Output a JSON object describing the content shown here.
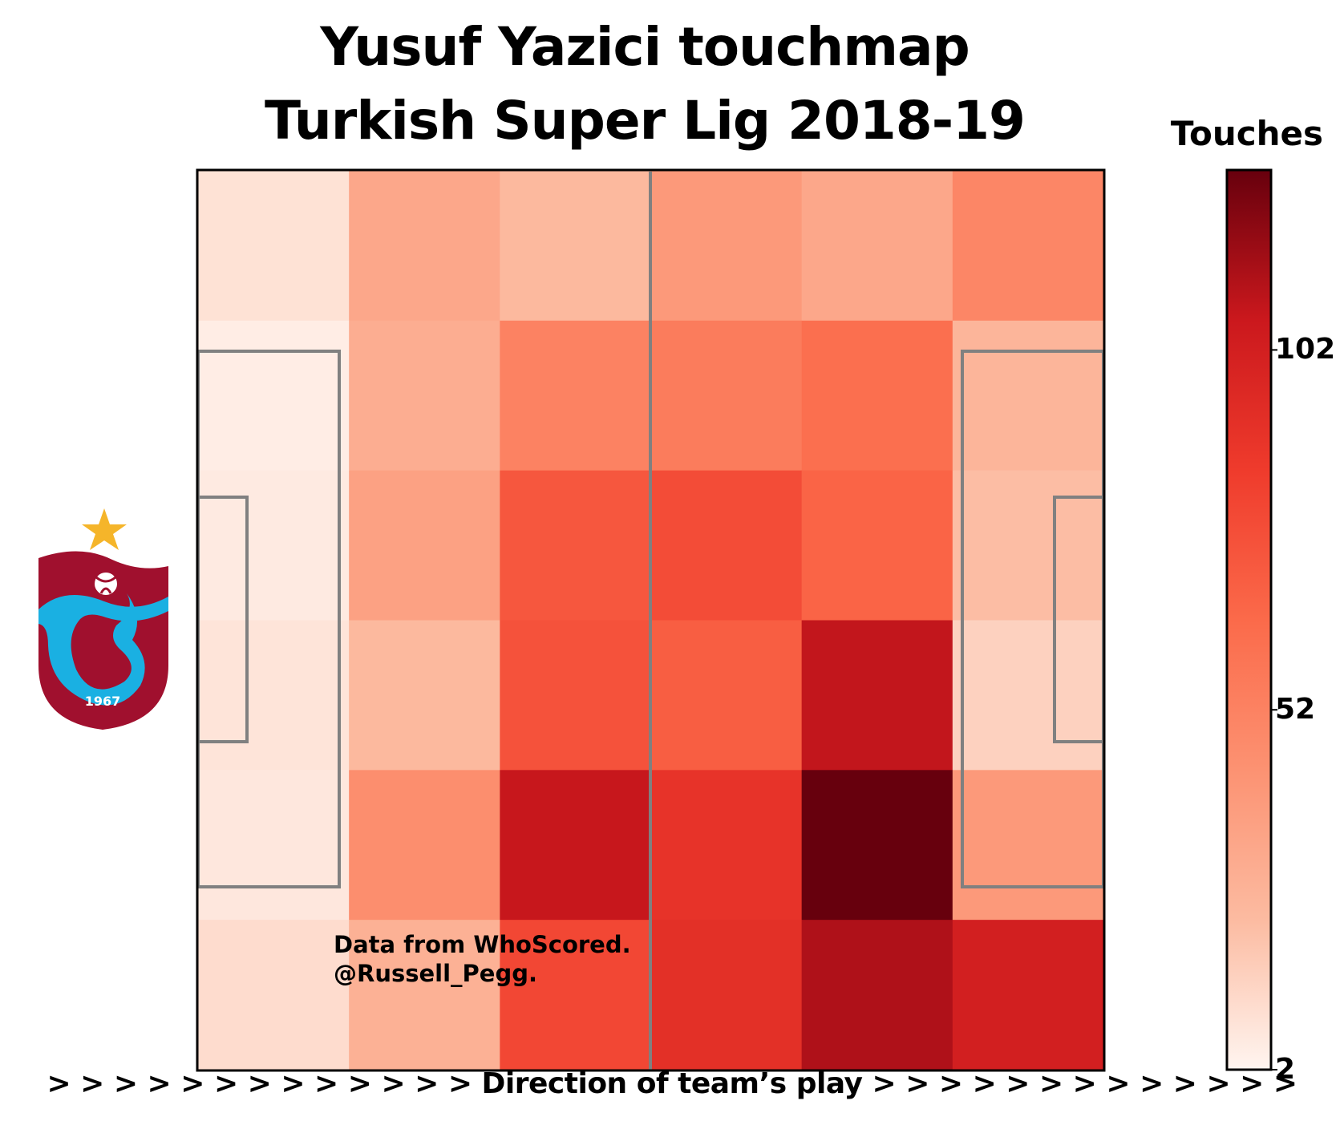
{
  "title": {
    "line1": "Yusuf Yazici touchmap",
    "line2": "Turkish Super Lig 2018-19"
  },
  "direction_label": "> > > > > > > > > > > > > Direction of team’s play > > > > > > > > > > > > >",
  "credits": {
    "line1": "Data from WhoScored.",
    "line2": "@Russell_Pegg."
  },
  "colorbar": {
    "title": "Touches",
    "ticks": [
      {
        "value": 102,
        "label": "102"
      },
      {
        "value": 52,
        "label": "52"
      },
      {
        "value": 2,
        "label": "2"
      }
    ],
    "min": 2,
    "max": 127,
    "colors": [
      "#fff5f0",
      "#fcbba1",
      "#fc9272",
      "#fb6a4a",
      "#ef3b2c",
      "#cb181d",
      "#67000d"
    ]
  },
  "crest": {
    "name": "trabzonspor-crest",
    "year": "1967",
    "colors": {
      "claret": "#a0102e",
      "blue": "#1ab0e2",
      "star": "#f5b52a"
    }
  },
  "chart_data": {
    "type": "heatmap",
    "title": "Yusuf Yazici touchmap\nTurkish Super Lig 2018-19",
    "colorbar_label": "Touches",
    "columns": 6,
    "rows": 6,
    "value_range": [
      2,
      127
    ],
    "values": [
      [
        9,
        33,
        24,
        40,
        33,
        50
      ],
      [
        5,
        30,
        52,
        55,
        62,
        26
      ],
      [
        6,
        36,
        73,
        78,
        67,
        22
      ],
      [
        8,
        24,
        75,
        70,
        108,
        15
      ],
      [
        7,
        46,
        107,
        90,
        127,
        40
      ],
      [
        11,
        28,
        80,
        92,
        112,
        102
      ]
    ]
  }
}
